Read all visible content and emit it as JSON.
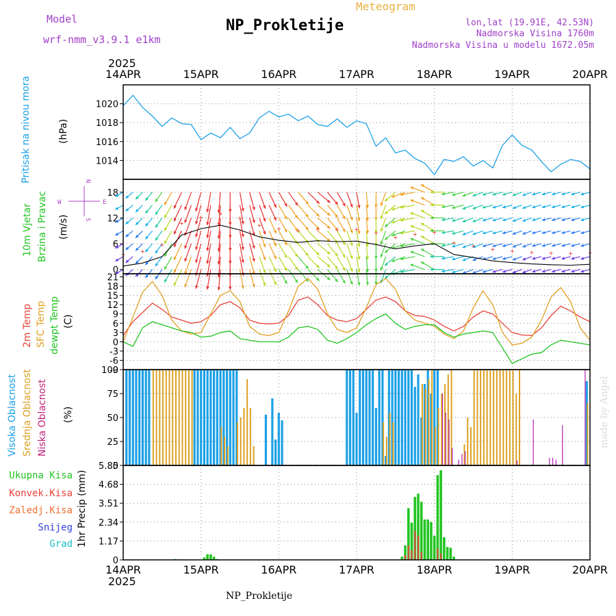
{
  "header": {
    "model_label": "Model",
    "model_name": "wrf-nmm_v3.9.1  e1km",
    "meteogram_label": "Meteogram",
    "station_title": "NP_Prokletije",
    "lonlat": "lon,lat (19.91E, 42.53N)",
    "elevation": "Nadmorska Visina 1760m",
    "model_elevation": "Nadmorska Visina u modelu 1672.05m"
  },
  "footer": {
    "station": "NP_Prokletije",
    "watermark": "made by Angel"
  },
  "time_axis": {
    "year": "2025",
    "labels": [
      "14APR",
      "15APR",
      "16APR",
      "17APR",
      "18APR",
      "19APR",
      "20APR"
    ]
  },
  "colors": {
    "pressure": "#1ba0e6",
    "temp2m": "#e8433a",
    "sfc_temp": "#e0a020",
    "dewpoint": "#22c422",
    "high_cloud": "#1ba0e6",
    "mid_cloud": "#dca020",
    "low_cloud": "#b020b0",
    "total_precip": "#22c422",
    "conv_precip": "#e8433a"
  },
  "chart_data": [
    {
      "type": "line",
      "title": "Pritisak na nivou mora",
      "ylabel": "(hPa)",
      "ylim": [
        1012,
        1022
      ],
      "yticks": [
        "1014",
        "1016",
        "1018",
        "1020"
      ],
      "series": [
        {
          "name": "Pritisak na nivou mora",
          "x": [
            0,
            3,
            6,
            9,
            12,
            15,
            18,
            21,
            24,
            27,
            30,
            33,
            36,
            39,
            42,
            45,
            48,
            51,
            54,
            57,
            60,
            63,
            66,
            69,
            72,
            75,
            78,
            81,
            84,
            87,
            90,
            93,
            96,
            99,
            102,
            105,
            108,
            111,
            114,
            117,
            120,
            123,
            126,
            129,
            132,
            135,
            138,
            141,
            144
          ],
          "values": [
            1019.8,
            1020.9,
            1019.6,
            1018.7,
            1017.6,
            1018.5,
            1017.9,
            1017.8,
            1016.2,
            1016.9,
            1016.4,
            1017.5,
            1016.3,
            1016.9,
            1018.5,
            1019.2,
            1018.6,
            1018.9,
            1018.2,
            1018.7,
            1017.8,
            1017.6,
            1018.4,
            1017.5,
            1018.2,
            1017.9,
            1015.5,
            1016.4,
            1014.8,
            1015.1,
            1014.2,
            1013.7,
            1012.5,
            1014.1,
            1013.9,
            1014.4,
            1013.4,
            1014.0,
            1013.2,
            1015.6,
            1016.7,
            1015.6,
            1015.1,
            1013.9,
            1012.8,
            1013.6,
            1014.1,
            1013.9,
            1013.1
          ]
        }
      ]
    },
    {
      "type": "line",
      "title": "10m Vjetar Brzina i Pravac",
      "ylabel": "(m/s)",
      "compass": {
        "n": "N",
        "e": "E",
        "w": "W",
        "s": "S"
      },
      "ylim": [
        -1,
        21
      ],
      "yticks": [
        "0",
        "6",
        "12",
        "18"
      ],
      "series": [
        {
          "name": "speed",
          "x": [
            0,
            6,
            12,
            18,
            24,
            30,
            36,
            42,
            48,
            54,
            60,
            66,
            72,
            78,
            84,
            90,
            96,
            102,
            108,
            114,
            120,
            126,
            132,
            138,
            144
          ],
          "values": [
            0.8,
            1.5,
            3.0,
            8.0,
            9.5,
            10.3,
            9.2,
            7.6,
            6.8,
            6.3,
            6.7,
            6.5,
            6.6,
            5.8,
            4.8,
            5.5,
            6.0,
            3.5,
            2.8,
            2.0,
            1.6,
            1.3,
            1.1,
            1.0,
            1.2
          ]
        }
      ],
      "arrow_rows": [
        18,
        15,
        12,
        9,
        6,
        3,
        0
      ],
      "arrow_columns": [
        0,
        3,
        6,
        9,
        12,
        15,
        18,
        21,
        24,
        27,
        30,
        33,
        36,
        39,
        42,
        45,
        48,
        51,
        54,
        57,
        60,
        63,
        66,
        69,
        72,
        75,
        78,
        81,
        84,
        87,
        90,
        93,
        96,
        99,
        102,
        105,
        108,
        111,
        114,
        117,
        120,
        123,
        126,
        129,
        132,
        135,
        138,
        141,
        144
      ],
      "arrow_directions_deg": [
        240,
        230,
        225,
        220,
        215,
        210,
        205,
        200,
        195,
        190,
        185,
        180,
        170,
        165,
        160,
        155,
        150,
        145,
        140,
        135,
        130,
        140,
        150,
        160,
        170,
        175,
        180,
        200,
        230,
        250,
        260,
        290,
        300,
        270,
        260,
        255,
        250,
        250,
        255,
        255,
        255,
        250,
        250,
        255,
        255,
        255,
        255,
        255,
        255
      ]
    },
    {
      "type": "line",
      "ylabel": "(C)",
      "ylim": [
        -9,
        22
      ],
      "yticks": [
        "-9",
        "-6",
        "-3",
        "0",
        "3",
        "6",
        "9",
        "12",
        "15",
        "18",
        "21"
      ],
      "series": [
        {
          "name": "2m Temp",
          "x": [
            0,
            3,
            6,
            9,
            12,
            15,
            18,
            21,
            24,
            27,
            30,
            33,
            36,
            39,
            42,
            45,
            48,
            51,
            54,
            57,
            60,
            63,
            66,
            69,
            72,
            75,
            78,
            81,
            84,
            87,
            90,
            93,
            96,
            99,
            102,
            105,
            108,
            111,
            114,
            117,
            120,
            123,
            126,
            129,
            132,
            135,
            138,
            141,
            144
          ],
          "values": [
            2.0,
            6.5,
            9.5,
            12.5,
            10.5,
            8.0,
            7.0,
            6.0,
            6.5,
            8.5,
            12.0,
            13.0,
            11.0,
            7.0,
            6.0,
            5.8,
            6.0,
            8.5,
            13.5,
            14.5,
            12.0,
            8.5,
            7.0,
            6.5,
            7.5,
            10.5,
            13.5,
            14.5,
            13.0,
            10.0,
            8.5,
            8.2,
            7.0,
            5.0,
            3.5,
            5.0,
            8.0,
            10.0,
            9.0,
            6.0,
            3.0,
            2.2,
            2.0,
            4.5,
            8.5,
            11.5,
            10.0,
            8.0,
            6.5
          ]
        },
        {
          "name": "SFC Temp",
          "x": [
            0,
            3,
            6,
            9,
            12,
            15,
            18,
            21,
            24,
            27,
            30,
            33,
            36,
            39,
            42,
            45,
            48,
            51,
            54,
            57,
            60,
            63,
            66,
            69,
            72,
            75,
            78,
            81,
            84,
            87,
            90,
            93,
            96,
            99,
            102,
            105,
            108,
            111,
            114,
            117,
            120,
            123,
            126,
            129,
            132,
            135,
            138,
            141,
            144
          ],
          "values": [
            0.0,
            8.0,
            16.0,
            19.5,
            15.0,
            7.0,
            3.5,
            2.5,
            3.0,
            9.0,
            15.0,
            16.5,
            13.0,
            5.0,
            2.5,
            2.0,
            3.0,
            10.0,
            18.0,
            20.5,
            17.0,
            9.0,
            4.0,
            3.0,
            4.5,
            11.0,
            18.5,
            20.5,
            17.0,
            10.0,
            7.0,
            6.0,
            5.0,
            2.5,
            1.0,
            3.5,
            11.0,
            16.5,
            12.0,
            3.0,
            -1.0,
            -0.5,
            1.5,
            7.0,
            14.5,
            17.5,
            13.0,
            4.5,
            0.5
          ]
        },
        {
          "name": "dewpt Temp",
          "x": [
            0,
            3,
            6,
            9,
            12,
            15,
            18,
            21,
            24,
            27,
            30,
            33,
            36,
            39,
            42,
            45,
            48,
            51,
            54,
            57,
            60,
            63,
            66,
            69,
            72,
            75,
            78,
            81,
            84,
            87,
            90,
            93,
            96,
            99,
            102,
            105,
            108,
            111,
            114,
            117,
            120,
            123,
            126,
            129,
            132,
            135,
            138,
            141,
            144
          ],
          "values": [
            0.0,
            -1.5,
            4.5,
            6.5,
            5.5,
            4.5,
            3.5,
            3.0,
            1.5,
            1.8,
            3.0,
            3.5,
            1.0,
            0.5,
            0.0,
            0.0,
            0.0,
            1.5,
            4.5,
            5.0,
            4.0,
            0.5,
            -0.5,
            1.0,
            3.0,
            5.5,
            7.5,
            9.0,
            6.0,
            4.0,
            5.0,
            5.5,
            5.5,
            3.0,
            1.5,
            2.5,
            3.0,
            3.5,
            3.0,
            -2.0,
            -7.0,
            -5.5,
            -4.0,
            -3.5,
            -1.0,
            0.5,
            0.0,
            -0.5,
            -1.0
          ]
        }
      ]
    },
    {
      "type": "bar",
      "ylabel": "(%)",
      "ylim": [
        0,
        100
      ],
      "yticks": [
        "0",
        "25",
        "50",
        "75",
        "100"
      ],
      "series": [
        {
          "name": "Visoka Oblacnost",
          "x": [
            1,
            2,
            3,
            4,
            5,
            6,
            7,
            8,
            22,
            23,
            24,
            25,
            26,
            27,
            28,
            29,
            30,
            31,
            32,
            33,
            34,
            35,
            44,
            46,
            47,
            48,
            49,
            50,
            69,
            70,
            71,
            72,
            73,
            74,
            75,
            76,
            77,
            78,
            79,
            80,
            81,
            82,
            83,
            84,
            85,
            86,
            87,
            88,
            89,
            90,
            91,
            92,
            93,
            94,
            95,
            96,
            97,
            143
          ],
          "values": [
            100,
            100,
            100,
            100,
            100,
            100,
            100,
            100,
            100,
            100,
            100,
            100,
            100,
            100,
            100,
            100,
            100,
            100,
            100,
            100,
            100,
            100,
            53,
            70,
            27,
            55,
            47,
            0,
            100,
            100,
            100,
            55,
            100,
            100,
            100,
            100,
            100,
            60,
            100,
            100,
            10,
            100,
            100,
            100,
            100,
            100,
            100,
            100,
            100,
            82,
            95,
            50,
            85,
            100,
            75,
            100,
            100,
            88
          ]
        },
        {
          "name": "Srednja Oblacnost",
          "x": [
            9,
            10,
            11,
            12,
            13,
            14,
            15,
            16,
            17,
            18,
            19,
            20,
            21,
            30,
            31,
            32,
            35,
            36,
            37,
            38,
            39,
            40,
            80,
            81,
            82,
            83,
            92,
            93,
            94,
            95,
            96,
            97,
            98,
            99,
            100,
            101,
            105,
            106,
            107,
            108,
            109,
            110,
            111,
            112,
            113,
            114,
            115,
            116,
            117,
            118,
            119,
            120,
            121,
            122,
            143
          ],
          "values": [
            100,
            100,
            100,
            100,
            100,
            100,
            100,
            100,
            100,
            100,
            100,
            100,
            100,
            40,
            30,
            20,
            45,
            50,
            60,
            90,
            60,
            20,
            45,
            30,
            55,
            45,
            85,
            80,
            90,
            100,
            40,
            60,
            75,
            85,
            95,
            100,
            22,
            50,
            40,
            100,
            100,
            100,
            100,
            100,
            100,
            100,
            100,
            100,
            100,
            100,
            100,
            100,
            75,
            100,
            65
          ]
        },
        {
          "name": "Niska Oblacnost",
          "x": [
            98,
            99,
            100,
            101,
            103,
            104,
            105,
            121,
            126,
            131,
            132,
            133,
            135,
            142
          ],
          "values": [
            75,
            55,
            48,
            18,
            6,
            12,
            15,
            5,
            48,
            8,
            8,
            6,
            42,
            100
          ]
        }
      ]
    },
    {
      "type": "bar",
      "ylabel": "1hr Precip (mm)",
      "ylim": [
        0,
        5.85
      ],
      "yticks": [
        "0",
        "1.17",
        "2.34",
        "3.51",
        "4.68",
        "5.85"
      ],
      "legend": [
        "Ukupna Kisa",
        "Konvek.Kisa",
        "Zaledj.Kisa",
        "Snijeg",
        "Grad"
      ],
      "series": [
        {
          "name": "Ukupna Kisa",
          "x": [
            16,
            25,
            26,
            27,
            28,
            29,
            86,
            87,
            88,
            89,
            90,
            91,
            92,
            93,
            94,
            95,
            96,
            97,
            98,
            99,
            100,
            101,
            102
          ],
          "values": [
            0.05,
            0.15,
            0.35,
            0.35,
            0.2,
            0.05,
            0.2,
            0.9,
            3.2,
            2.3,
            3.9,
            4.1,
            3.6,
            2.5,
            2.5,
            2.35,
            1.5,
            5.25,
            5.55,
            1.4,
            0.8,
            0.75,
            0.2
          ]
        },
        {
          "name": "Konvek.Kisa",
          "x": [
            87,
            88,
            89,
            90,
            91,
            92,
            97,
            98
          ],
          "values": [
            0.3,
            0.9,
            0.6,
            1.8,
            1.5,
            0.5,
            0.7,
            0.4
          ]
        }
      ]
    }
  ]
}
